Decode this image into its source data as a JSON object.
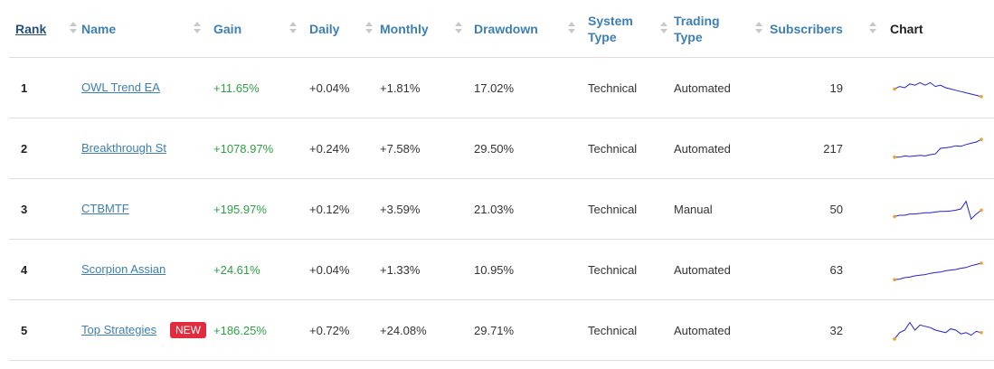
{
  "table": {
    "headers": {
      "rank": "Rank",
      "name": "Name",
      "gain": "Gain",
      "daily": "Daily",
      "monthly": "Monthly",
      "drawdown": "Drawdown",
      "system_type": "System\nType",
      "trading_type": "Trading\nType",
      "subscribers": "Subscribers",
      "chart": "Chart"
    },
    "rows": [
      {
        "rank": "1",
        "name": "OWL Trend EA",
        "badge": "",
        "gain": "+11.65%",
        "daily": "+0.04%",
        "monthly": "+1.81%",
        "drawdown": "17.02%",
        "system_type": "Technical",
        "trading_type": "Automated",
        "subscribers": "19",
        "spark": [
          0.55,
          0.45,
          0.5,
          0.35,
          0.4,
          0.3,
          0.4,
          0.3,
          0.45,
          0.4,
          0.5,
          0.55,
          0.6,
          0.65,
          0.7,
          0.75,
          0.8,
          0.85
        ]
      },
      {
        "rank": "2",
        "name": "Breakthrough St",
        "badge": "",
        "gain": "+1078.97%",
        "daily": "+0.24%",
        "monthly": "+7.58%",
        "drawdown": "29.50%",
        "system_type": "Technical",
        "trading_type": "Automated",
        "subscribers": "217",
        "spark": [
          0.85,
          0.85,
          0.8,
          0.82,
          0.8,
          0.78,
          0.8,
          0.75,
          0.72,
          0.5,
          0.48,
          0.45,
          0.4,
          0.42,
          0.35,
          0.3,
          0.25,
          0.15
        ]
      },
      {
        "rank": "3",
        "name": "CTBMTF",
        "badge": "",
        "gain": "+195.97%",
        "daily": "+0.12%",
        "monthly": "+3.59%",
        "drawdown": "21.03%",
        "system_type": "Technical",
        "trading_type": "Manual",
        "subscribers": "50",
        "spark": [
          0.8,
          0.75,
          0.75,
          0.7,
          0.7,
          0.68,
          0.65,
          0.65,
          0.62,
          0.6,
          0.6,
          0.58,
          0.55,
          0.5,
          0.2,
          0.9,
          0.7,
          0.55
        ]
      },
      {
        "rank": "4",
        "name": "Scorpion Assian",
        "badge": "",
        "gain": "+24.61%",
        "daily": "+0.04%",
        "monthly": "+1.33%",
        "drawdown": "10.95%",
        "system_type": "Technical",
        "trading_type": "Automated",
        "subscribers": "63",
        "spark": [
          0.9,
          0.88,
          0.82,
          0.8,
          0.75,
          0.72,
          0.7,
          0.65,
          0.62,
          0.6,
          0.55,
          0.52,
          0.5,
          0.45,
          0.42,
          0.35,
          0.3,
          0.25
        ]
      },
      {
        "rank": "5",
        "name": "Top Strategies",
        "badge": "NEW",
        "gain": "+186.25%",
        "daily": "+0.72%",
        "monthly": "+24.08%",
        "drawdown": "29.71%",
        "system_type": "Technical",
        "trading_type": "Automated",
        "subscribers": "32",
        "spark": [
          0.85,
          0.6,
          0.5,
          0.2,
          0.5,
          0.3,
          0.35,
          0.4,
          0.5,
          0.55,
          0.6,
          0.45,
          0.5,
          0.65,
          0.6,
          0.7,
          0.55,
          0.6
        ]
      }
    ]
  },
  "colors": {
    "link": "#3c7fb6",
    "gain": "#2ea043",
    "badge": "#e02c3d",
    "spark_line": "#2222cc",
    "spark_marker": "#f0a030"
  }
}
